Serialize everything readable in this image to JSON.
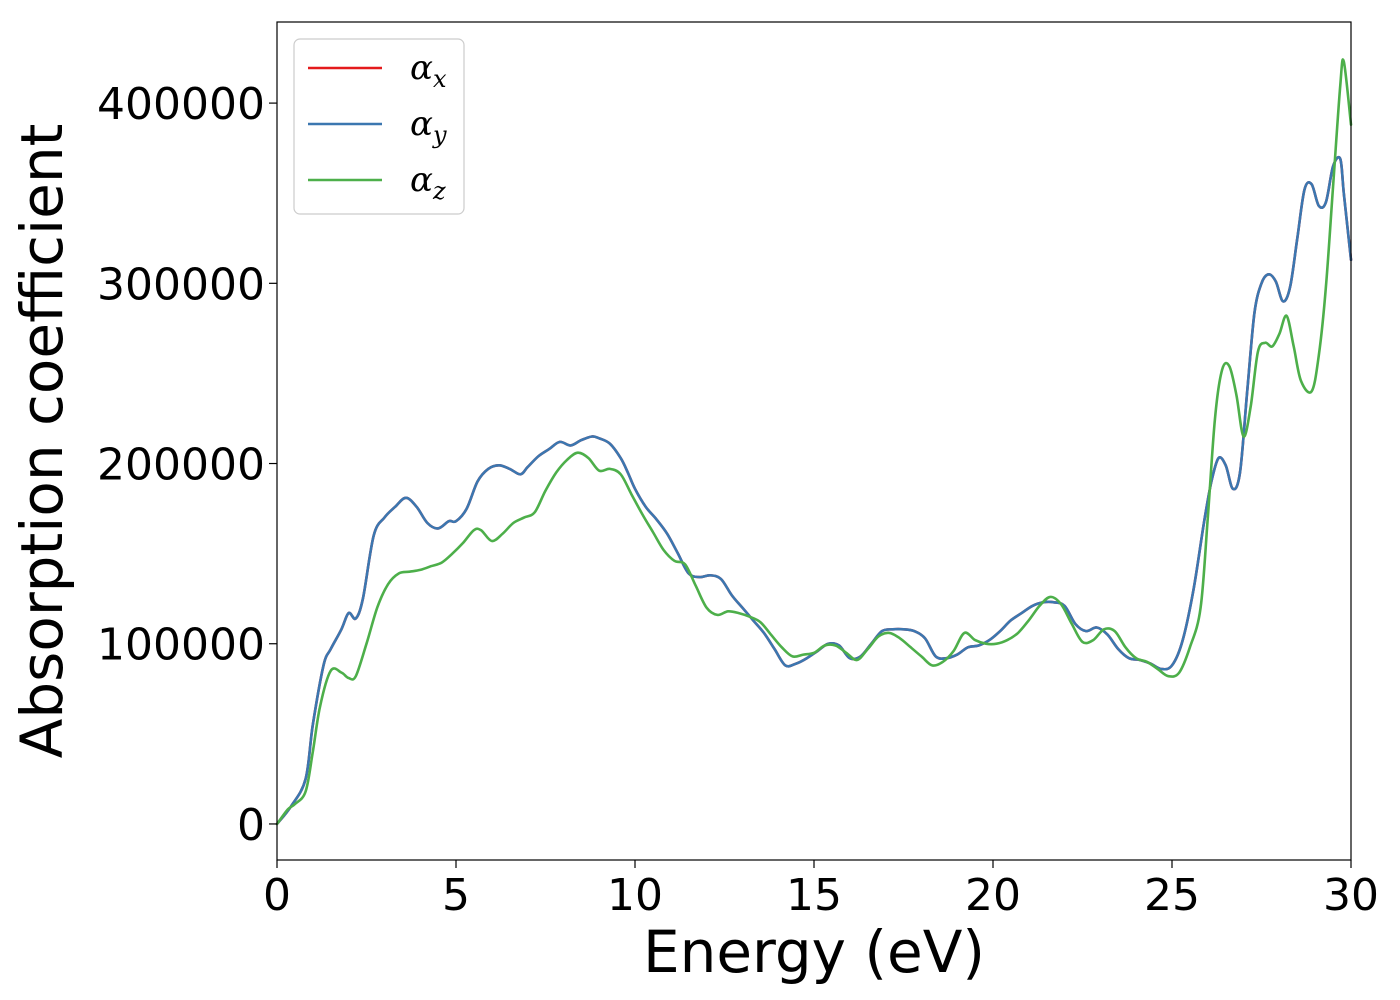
{
  "chart_data": {
    "type": "line",
    "title": "",
    "xlabel": "Energy (eV)",
    "ylabel": "Absorption coefficient",
    "xlim": [
      0,
      30
    ],
    "ylim": [
      -20000,
      445000
    ],
    "xticks": [
      0,
      5,
      10,
      15,
      20,
      25,
      30
    ],
    "yticks": [
      0,
      100000,
      200000,
      300000,
      400000
    ],
    "xtick_labels": [
      "0",
      "5",
      "10",
      "15",
      "20",
      "25",
      "30"
    ],
    "ytick_labels": [
      "0",
      "100000",
      "200000",
      "300000",
      "400000"
    ],
    "grid": false,
    "legend_position": "top-left",
    "series": [
      {
        "name": "α_x",
        "label_base": "α",
        "label_sub": "x",
        "color": "#e41a1c",
        "x": [
          0,
          0.4,
          0.8,
          1.0,
          1.3,
          1.5,
          1.8,
          2.0,
          2.2,
          2.4,
          2.7,
          3.0,
          3.3,
          3.6,
          3.9,
          4.2,
          4.5,
          4.8,
          5.0,
          5.3,
          5.6,
          5.9,
          6.2,
          6.5,
          6.8,
          7.0,
          7.3,
          7.6,
          7.9,
          8.2,
          8.5,
          8.8,
          9.0,
          9.3,
          9.6,
          9.8,
          10.0,
          10.3,
          10.6,
          10.9,
          11.2,
          11.5,
          11.8,
          12.1,
          12.4,
          12.7,
          13.0,
          13.3,
          13.6,
          13.9,
          14.2,
          14.5,
          14.8,
          15.1,
          15.4,
          15.7,
          16.0,
          16.3,
          16.6,
          16.9,
          17.2,
          17.5,
          17.8,
          18.1,
          18.4,
          18.7,
          19.0,
          19.3,
          19.6,
          19.9,
          20.2,
          20.5,
          20.8,
          21.1,
          21.4,
          21.7,
          22.0,
          22.3,
          22.6,
          22.9,
          23.2,
          23.5,
          23.8,
          24.1,
          24.4,
          24.7,
          25.0,
          25.3,
          25.6,
          25.9,
          26.1,
          26.3,
          26.5,
          26.7,
          26.9,
          27.1,
          27.3,
          27.5,
          27.7,
          27.9,
          28.1,
          28.3,
          28.5,
          28.7,
          28.9,
          29.1,
          29.3,
          29.5,
          29.7,
          29.8,
          30.0
        ],
        "y": [
          0,
          10000,
          25000,
          55000,
          88000,
          97000,
          108000,
          117000,
          114000,
          125000,
          160000,
          170000,
          176000,
          181000,
          176000,
          167000,
          164000,
          168000,
          168000,
          175000,
          190000,
          197000,
          199000,
          197000,
          194000,
          198000,
          204000,
          208000,
          212000,
          210000,
          213000,
          215000,
          214000,
          211000,
          203000,
          195000,
          186000,
          176000,
          169000,
          161000,
          150000,
          139000,
          137000,
          138000,
          136000,
          127000,
          120000,
          113000,
          106000,
          97000,
          88000,
          89000,
          92000,
          96000,
          100000,
          99000,
          92000,
          93000,
          100000,
          107000,
          108000,
          108000,
          107000,
          103000,
          93000,
          92000,
          94000,
          98000,
          99000,
          102000,
          107000,
          113000,
          117000,
          121000,
          123000,
          123000,
          121000,
          111000,
          107000,
          109000,
          105000,
          97000,
          92000,
          91000,
          89000,
          86000,
          88000,
          102000,
          130000,
          168000,
          190000,
          203000,
          199000,
          186000,
          195000,
          240000,
          283000,
          300000,
          305000,
          301000,
          290000,
          298000,
          325000,
          352000,
          355000,
          343000,
          345000,
          365000,
          369000,
          350000,
          313000
        ]
      },
      {
        "name": "α_y",
        "label_base": "α",
        "label_sub": "y",
        "color": "#3b77b0",
        "x": [
          0,
          0.4,
          0.8,
          1.0,
          1.3,
          1.5,
          1.8,
          2.0,
          2.2,
          2.4,
          2.7,
          3.0,
          3.3,
          3.6,
          3.9,
          4.2,
          4.5,
          4.8,
          5.0,
          5.3,
          5.6,
          5.9,
          6.2,
          6.5,
          6.8,
          7.0,
          7.3,
          7.6,
          7.9,
          8.2,
          8.5,
          8.8,
          9.0,
          9.3,
          9.6,
          9.8,
          10.0,
          10.3,
          10.6,
          10.9,
          11.2,
          11.5,
          11.8,
          12.1,
          12.4,
          12.7,
          13.0,
          13.3,
          13.6,
          13.9,
          14.2,
          14.5,
          14.8,
          15.1,
          15.4,
          15.7,
          16.0,
          16.3,
          16.6,
          16.9,
          17.2,
          17.5,
          17.8,
          18.1,
          18.4,
          18.7,
          19.0,
          19.3,
          19.6,
          19.9,
          20.2,
          20.5,
          20.8,
          21.1,
          21.4,
          21.7,
          22.0,
          22.3,
          22.6,
          22.9,
          23.2,
          23.5,
          23.8,
          24.1,
          24.4,
          24.7,
          25.0,
          25.3,
          25.6,
          25.9,
          26.1,
          26.3,
          26.5,
          26.7,
          26.9,
          27.1,
          27.3,
          27.5,
          27.7,
          27.9,
          28.1,
          28.3,
          28.5,
          28.7,
          28.9,
          29.1,
          29.3,
          29.5,
          29.7,
          29.8,
          30.0
        ],
        "y": [
          0,
          10000,
          25000,
          55000,
          88000,
          97000,
          108000,
          117000,
          114000,
          125000,
          160000,
          170000,
          176000,
          181000,
          176000,
          167000,
          164000,
          168000,
          168000,
          175000,
          190000,
          197000,
          199000,
          197000,
          194000,
          198000,
          204000,
          208000,
          212000,
          210000,
          213000,
          215000,
          214000,
          211000,
          203000,
          195000,
          186000,
          176000,
          169000,
          161000,
          150000,
          139000,
          137000,
          138000,
          136000,
          127000,
          120000,
          113000,
          106000,
          97000,
          88000,
          89000,
          92000,
          96000,
          100000,
          99000,
          92000,
          93000,
          100000,
          107000,
          108000,
          108000,
          107000,
          103000,
          93000,
          92000,
          94000,
          98000,
          99000,
          102000,
          107000,
          113000,
          117000,
          121000,
          123000,
          123000,
          121000,
          111000,
          107000,
          109000,
          105000,
          97000,
          92000,
          91000,
          89000,
          86000,
          88000,
          102000,
          130000,
          168000,
          190000,
          203000,
          199000,
          186000,
          195000,
          240000,
          283000,
          300000,
          305000,
          301000,
          290000,
          298000,
          325000,
          352000,
          355000,
          343000,
          345000,
          365000,
          369000,
          350000,
          313000
        ]
      },
      {
        "name": "α_z",
        "label_base": "α",
        "label_sub": "z",
        "color": "#4daf4a",
        "x": [
          0,
          0.3,
          0.5,
          0.8,
          1.0,
          1.2,
          1.5,
          1.8,
          2.0,
          2.2,
          2.5,
          2.8,
          3.1,
          3.4,
          3.7,
          4.0,
          4.3,
          4.6,
          4.9,
          5.2,
          5.5,
          5.7,
          6.0,
          6.3,
          6.6,
          6.9,
          7.2,
          7.5,
          7.8,
          8.1,
          8.4,
          8.7,
          9.0,
          9.3,
          9.6,
          9.9,
          10.2,
          10.5,
          10.8,
          11.1,
          11.4,
          11.7,
          12.0,
          12.3,
          12.6,
          12.9,
          13.2,
          13.5,
          13.8,
          14.1,
          14.4,
          14.7,
          15.0,
          15.3,
          15.6,
          15.9,
          16.2,
          16.5,
          16.8,
          17.1,
          17.4,
          17.7,
          18.0,
          18.3,
          18.6,
          18.9,
          19.2,
          19.5,
          19.8,
          20.1,
          20.4,
          20.7,
          21.0,
          21.3,
          21.6,
          21.9,
          22.2,
          22.5,
          22.8,
          23.1,
          23.4,
          23.7,
          24.0,
          24.3,
          24.6,
          24.9,
          25.2,
          25.5,
          25.8,
          26.0,
          26.2,
          26.4,
          26.6,
          26.8,
          27.0,
          27.2,
          27.4,
          27.6,
          27.8,
          28.0,
          28.2,
          28.4,
          28.6,
          28.9,
          29.1,
          29.3,
          29.5,
          29.7,
          29.8,
          30.0
        ],
        "y": [
          0,
          8000,
          11000,
          18000,
          40000,
          65000,
          85000,
          84000,
          81000,
          82000,
          100000,
          120000,
          133000,
          139000,
          140000,
          141000,
          143000,
          145000,
          150000,
          156000,
          163000,
          163000,
          157000,
          161000,
          167000,
          170000,
          173000,
          185000,
          195000,
          202000,
          206000,
          203000,
          196000,
          197000,
          194000,
          183000,
          172000,
          162000,
          152000,
          146000,
          144000,
          132000,
          120000,
          116000,
          118000,
          117000,
          115000,
          112000,
          105000,
          98000,
          93000,
          94000,
          95000,
          99000,
          99000,
          95000,
          91000,
          97000,
          104000,
          106000,
          103000,
          98000,
          93000,
          88000,
          90000,
          96000,
          106000,
          102000,
          100000,
          100000,
          102000,
          106000,
          113000,
          121000,
          126000,
          122000,
          111000,
          101000,
          102000,
          108000,
          107000,
          98000,
          92000,
          90000,
          86000,
          82000,
          84000,
          98000,
          120000,
          170000,
          225000,
          252000,
          254000,
          238000,
          215000,
          232000,
          262000,
          267000,
          265000,
          272000,
          282000,
          265000,
          246000,
          240000,
          260000,
          298000,
          354000,
          410000,
          423000,
          388000
        ]
      }
    ]
  }
}
